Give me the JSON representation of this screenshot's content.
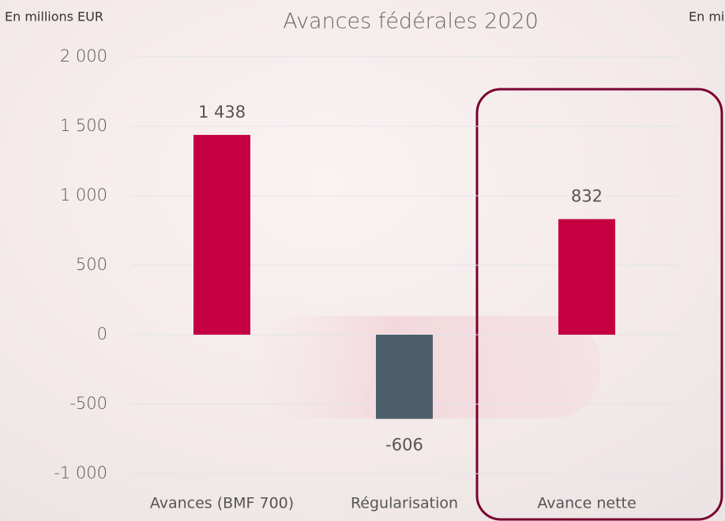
{
  "chart_data": {
    "type": "bar",
    "title": "Avances fédérales 2020",
    "unit_label": "En millions EUR",
    "categories": [
      "Avances (BMF 700)",
      "Régularisation",
      "Avance nette"
    ],
    "values": [
      1438,
      -606,
      832
    ],
    "value_labels": [
      "1 438",
      "-606",
      "832"
    ],
    "colors": [
      "#c40043",
      "#4d5e6b",
      "#c40043"
    ],
    "ylim": [
      -1000,
      2000
    ],
    "yticks": [
      {
        "value": -1000,
        "label": "-1 000"
      },
      -500,
      0,
      500,
      {
        "value": 1000,
        "label": "1 000"
      },
      {
        "value": 1500,
        "label": "1 500"
      },
      {
        "value": 2000,
        "label": "2 000"
      }
    ],
    "grid": true
  }
}
